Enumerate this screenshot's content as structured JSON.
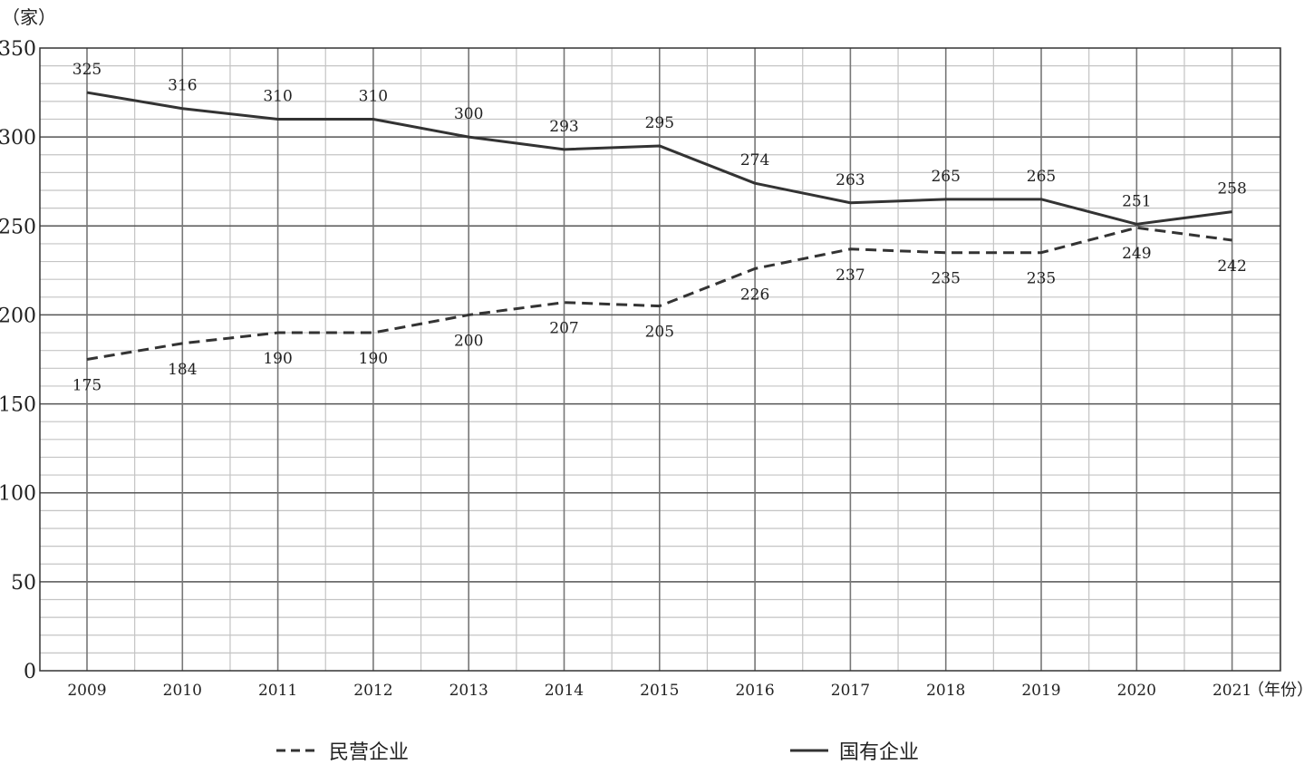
{
  "chart_data": {
    "type": "line",
    "ylabel": "（家）",
    "xlabel": "（年份）",
    "categories": [
      "2009",
      "2010",
      "2011",
      "2012",
      "2013",
      "2014",
      "2015",
      "2016",
      "2017",
      "2018",
      "2019",
      "2020",
      "2021"
    ],
    "ylim": [
      0,
      350
    ],
    "yticks": [
      0,
      50,
      100,
      150,
      200,
      250,
      300,
      350
    ],
    "minor_grid_step": 10,
    "grid": true,
    "legend_position": "bottom",
    "series": [
      {
        "name": "民营企业",
        "style": "dashed",
        "color": "#333333",
        "values": [
          175,
          184,
          190,
          190,
          200,
          207,
          205,
          226,
          237,
          235,
          235,
          249,
          242
        ]
      },
      {
        "name": "国有企业",
        "style": "solid",
        "color": "#333333",
        "values": [
          325,
          316,
          310,
          310,
          300,
          293,
          295,
          274,
          263,
          265,
          265,
          251,
          258
        ]
      }
    ]
  },
  "legend": {
    "private_label": "民营企业",
    "state_label": "国有企业"
  }
}
